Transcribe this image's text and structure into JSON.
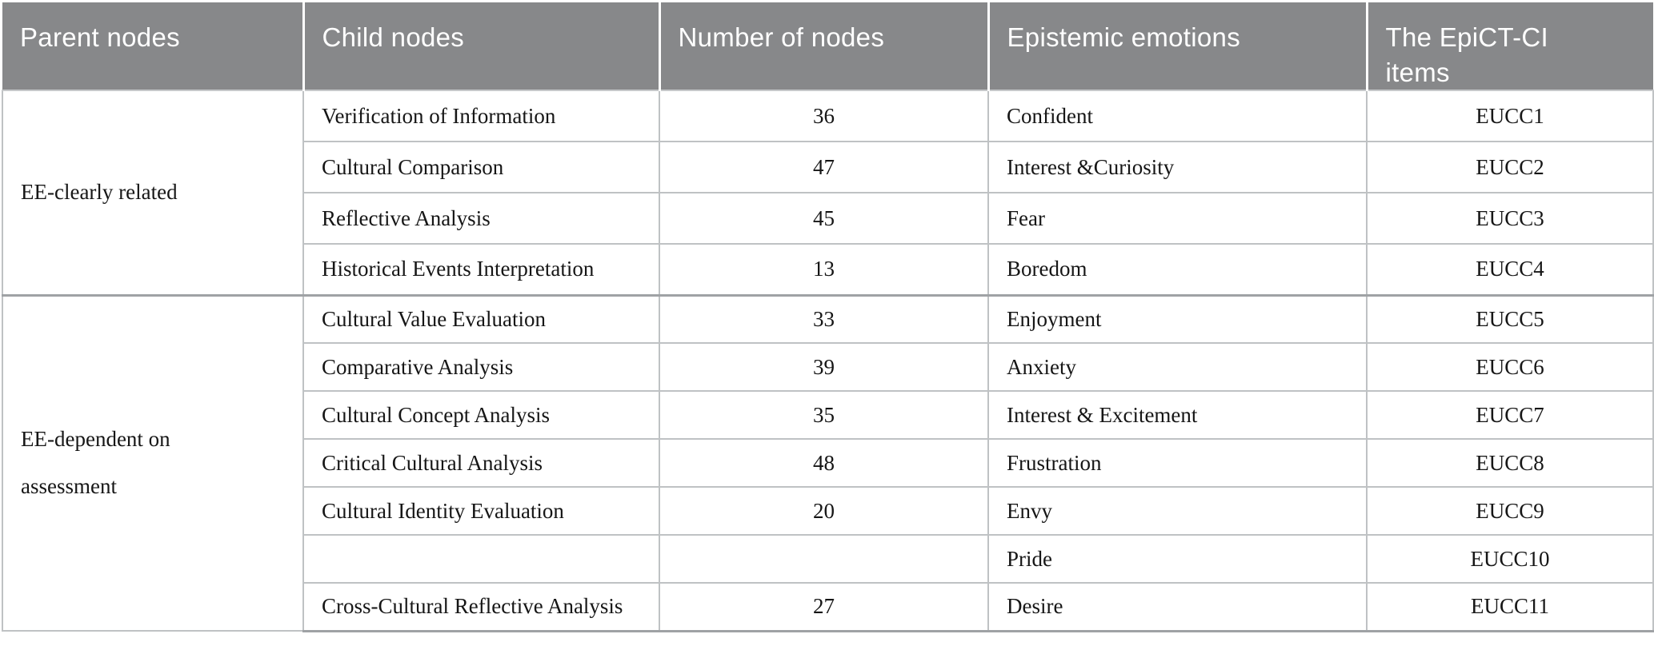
{
  "table": {
    "columns": [
      {
        "key": "parent-nodes",
        "label": "Parent nodes"
      },
      {
        "key": "child-nodes",
        "label": "Child nodes"
      },
      {
        "key": "number-of-nodes",
        "label": "Number of nodes"
      },
      {
        "key": "epistemic-emotions",
        "label": "Epistemic emotions"
      },
      {
        "key": "epict-ci-items",
        "label": "The EpiCT-CI\nitems"
      }
    ],
    "groups": [
      {
        "parent": "EE-clearly related",
        "rows": [
          {
            "child": "Verification of Information",
            "count": "36",
            "emotion": "Confident",
            "item": "EUCC1"
          },
          {
            "child": "Cultural Comparison",
            "count": "47",
            "emotion": "Interest &Curiosity",
            "item": "EUCC2"
          },
          {
            "child": "Reflective Analysis",
            "count": "45",
            "emotion": "Fear",
            "item": "EUCC3"
          },
          {
            "child": "Historical Events Interpretation",
            "count": "13",
            "emotion": "Boredom",
            "item": "EUCC4"
          }
        ]
      },
      {
        "parent": "EE-dependent on\nassessment",
        "rows": [
          {
            "child": "Cultural Value Evaluation",
            "count": "33",
            "emotion": "Enjoyment",
            "item": "EUCC5"
          },
          {
            "child": "Comparative Analysis",
            "count": "39",
            "emotion": "Anxiety",
            "item": "EUCC6"
          },
          {
            "child": "Cultural Concept Analysis",
            "count": "35",
            "emotion": "Interest & Excitement",
            "item": "EUCC7"
          },
          {
            "child": "Critical Cultural Analysis",
            "count": "48",
            "emotion": "Frustration",
            "item": "EUCC8"
          },
          {
            "child": "Cultural Identity Evaluation",
            "count": "20",
            "emotion": "Envy",
            "item": "EUCC9"
          },
          {
            "child": "",
            "count": "",
            "emotion": "Pride",
            "item": "EUCC10"
          },
          {
            "child": "Cross-Cultural Reflective Analysis",
            "count": "27",
            "emotion": "Desire",
            "item": "EUCC11"
          }
        ]
      }
    ],
    "colors": {
      "header_background": "#87888a",
      "header_text": "#ffffff",
      "body_text": "#161616",
      "grid_line": "#bfc2c4",
      "group_separator": "#9fa2a5"
    }
  }
}
